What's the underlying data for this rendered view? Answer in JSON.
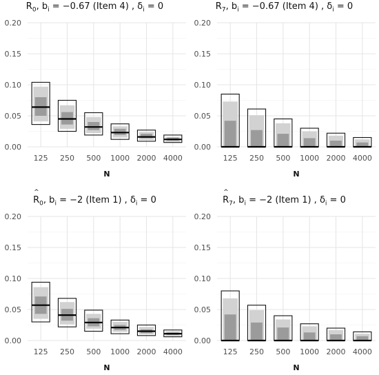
{
  "chart_data": [
    {
      "type": "bar",
      "title": {
        "symbol": "R",
        "hat": "^",
        "sub": "0",
        "rest": ", b",
        "rest_sub": "i",
        "rest2": " = −0.67 (Item 4) , δ",
        "rest2_sub": "i",
        "rest3": " = 0"
      },
      "xlabel": "N",
      "categories": [
        "125",
        "250",
        "500",
        "1000",
        "2000",
        "4000"
      ],
      "yticks": [
        "0.00",
        "0.05",
        "0.10",
        "0.15",
        "0.20"
      ],
      "ylim": [
        0,
        0.2
      ],
      "outer": [
        [
          0.036,
          0.104
        ],
        [
          0.025,
          0.075
        ],
        [
          0.019,
          0.055
        ],
        [
          0.012,
          0.037
        ],
        [
          0.009,
          0.027
        ],
        [
          0.007,
          0.019
        ]
      ],
      "light": [
        [
          0.041,
          0.097
        ],
        [
          0.029,
          0.067
        ],
        [
          0.022,
          0.048
        ],
        [
          0.015,
          0.033
        ],
        [
          0.011,
          0.024
        ],
        [
          0.008,
          0.016
        ]
      ],
      "dark": [
        [
          0.05,
          0.08
        ],
        [
          0.036,
          0.056
        ],
        [
          0.027,
          0.04
        ],
        [
          0.019,
          0.029
        ],
        [
          0.014,
          0.021
        ],
        [
          0.01,
          0.015
        ]
      ],
      "center": [
        0.064,
        0.045,
        0.032,
        0.023,
        0.016,
        0.012
      ]
    },
    {
      "type": "bar",
      "title": {
        "symbol": "R",
        "hat": "^",
        "sub": "7",
        "rest": ", b",
        "rest_sub": "i",
        "rest2": " = −0.67 (Item 4) , δ",
        "rest2_sub": "i",
        "rest3": " = 0"
      },
      "xlabel": "N",
      "categories": [
        "125",
        "250",
        "500",
        "1000",
        "2000",
        "4000"
      ],
      "yticks": [
        "0.00",
        "0.05",
        "0.10",
        "0.15",
        "0.20"
      ],
      "ylim": [
        0,
        0.2
      ],
      "outer": [
        [
          0,
          0.085
        ],
        [
          0,
          0.061
        ],
        [
          0,
          0.045
        ],
        [
          0,
          0.03
        ],
        [
          0,
          0.022
        ],
        [
          0,
          0.015
        ]
      ],
      "light": [
        [
          0,
          0.073
        ],
        [
          0,
          0.051
        ],
        [
          0,
          0.038
        ],
        [
          0,
          0.025
        ],
        [
          0,
          0.018
        ],
        [
          0,
          0.012
        ]
      ],
      "dark": [
        [
          0,
          0.042
        ],
        [
          0,
          0.027
        ],
        [
          0,
          0.021
        ],
        [
          0,
          0.014
        ],
        [
          0,
          0.01
        ],
        [
          0,
          0.007
        ]
      ],
      "center": [
        0,
        0,
        0,
        0,
        0,
        0
      ]
    },
    {
      "type": "bar",
      "title": {
        "symbol": "R",
        "hat": "^",
        "sub": "0",
        "rest": ", b",
        "rest_sub": "i",
        "rest2": " = −2 (Item 1) , δ",
        "rest2_sub": "i",
        "rest3": " = 0"
      },
      "xlabel": "N",
      "categories": [
        "125",
        "250",
        "500",
        "1000",
        "2000",
        "4000"
      ],
      "yticks": [
        "0.00",
        "0.05",
        "0.10",
        "0.15",
        "0.20"
      ],
      "ylim": [
        0,
        0.2
      ],
      "outer": [
        [
          0.03,
          0.094
        ],
        [
          0.022,
          0.068
        ],
        [
          0.015,
          0.049
        ],
        [
          0.011,
          0.033
        ],
        [
          0.008,
          0.025
        ],
        [
          0.006,
          0.017
        ]
      ],
      "light": [
        [
          0.035,
          0.086
        ],
        [
          0.026,
          0.062
        ],
        [
          0.019,
          0.043
        ],
        [
          0.014,
          0.03
        ],
        [
          0.01,
          0.022
        ],
        [
          0.007,
          0.015
        ]
      ],
      "dark": [
        [
          0.043,
          0.071
        ],
        [
          0.032,
          0.051
        ],
        [
          0.023,
          0.036
        ],
        [
          0.017,
          0.025
        ],
        [
          0.012,
          0.018
        ],
        [
          0.009,
          0.013
        ]
      ],
      "center": [
        0.057,
        0.041,
        0.029,
        0.021,
        0.015,
        0.011
      ]
    },
    {
      "type": "bar",
      "title": {
        "symbol": "R",
        "hat": "^",
        "sub": "7",
        "rest": ", b",
        "rest_sub": "i",
        "rest2": " = −2 (Item 1) , δ",
        "rest2_sub": "i",
        "rest3": " = 0"
      },
      "xlabel": "N",
      "categories": [
        "125",
        "250",
        "500",
        "1000",
        "2000",
        "4000"
      ],
      "yticks": [
        "0.00",
        "0.05",
        "0.10",
        "0.15",
        "0.20"
      ],
      "ylim": [
        0,
        0.2
      ],
      "outer": [
        [
          0,
          0.08
        ],
        [
          0,
          0.057
        ],
        [
          0,
          0.04
        ],
        [
          0,
          0.027
        ],
        [
          0,
          0.02
        ],
        [
          0,
          0.014
        ]
      ],
      "light": [
        [
          0,
          0.068
        ],
        [
          0,
          0.049
        ],
        [
          0,
          0.034
        ],
        [
          0,
          0.023
        ],
        [
          0,
          0.017
        ],
        [
          0,
          0.011
        ]
      ],
      "dark": [
        [
          0,
          0.042
        ],
        [
          0,
          0.029
        ],
        [
          0,
          0.021
        ],
        [
          0,
          0.013
        ],
        [
          0,
          0.01
        ],
        [
          0,
          0.007
        ]
      ],
      "center": [
        0,
        0,
        0,
        0,
        0,
        0
      ]
    }
  ]
}
